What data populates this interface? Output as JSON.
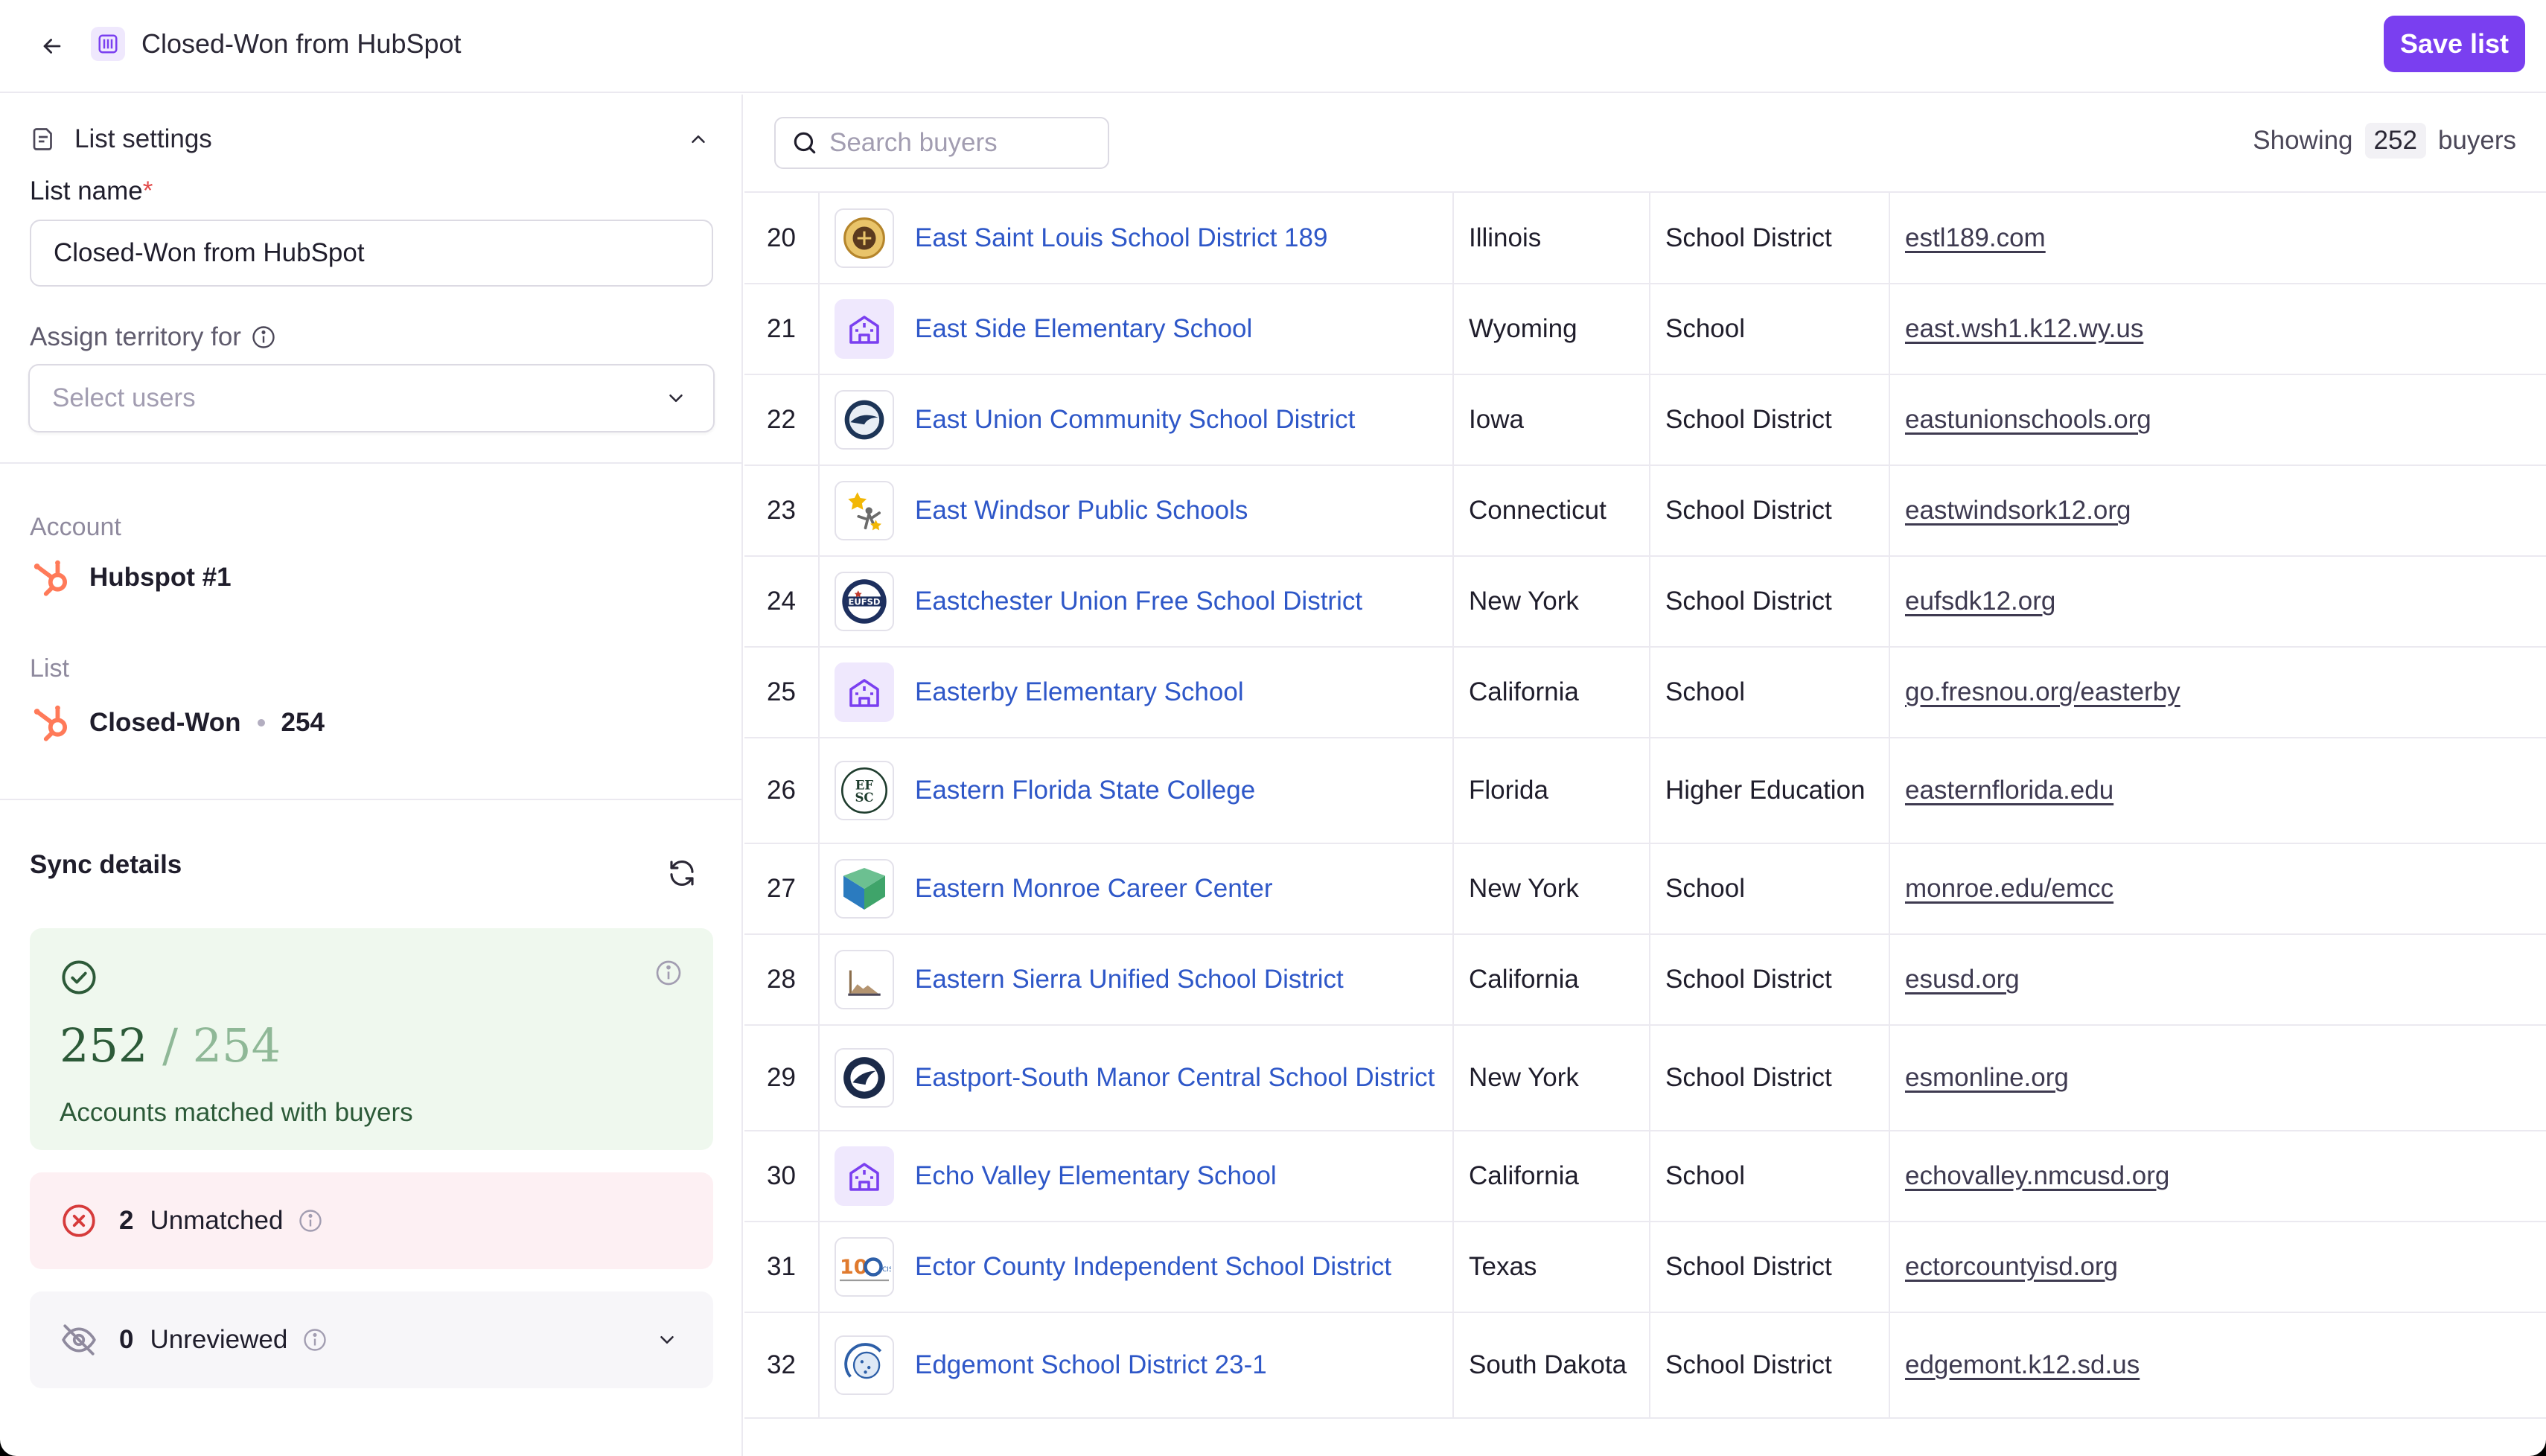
{
  "header": {
    "title": "Closed-Won from HubSpot",
    "save_label": "Save list"
  },
  "sidebar": {
    "section_title": "List settings",
    "list_name_label": "List name",
    "list_name_required": "*",
    "list_name_value": "Closed-Won from HubSpot",
    "assign_label": "Assign territory for",
    "assign_placeholder": "Select users",
    "account_label": "Account",
    "account_name": "Hubspot #1",
    "list_label": "List",
    "list_name": "Closed-Won",
    "list_count": "254",
    "sync_title": "Sync details",
    "matched": {
      "count": "252",
      "separator": "/",
      "total": "254",
      "label": "Accounts matched with buyers"
    },
    "unmatched": {
      "count": "2",
      "label": "Unmatched"
    },
    "unreviewed": {
      "count": "0",
      "label": "Unreviewed"
    }
  },
  "main": {
    "search_placeholder": "Search buyers",
    "showing_prefix": "Showing",
    "showing_count": "252",
    "showing_suffix": "buyers"
  },
  "rows": [
    {
      "idx": "20",
      "name": "East Saint Louis School District 189",
      "state": "Illinois",
      "type": "School District",
      "website": "estl189.com",
      "logo": "seal-gold"
    },
    {
      "idx": "21",
      "name": "East Side Elementary School",
      "state": "Wyoming",
      "type": "School",
      "website": "east.wsh1.k12.wy.us",
      "logo": "school-building-icon"
    },
    {
      "idx": "22",
      "name": "East Union Community School District",
      "state": "Iowa",
      "type": "School District",
      "website": "eastunionschools.org",
      "logo": "eagle-blue"
    },
    {
      "idx": "23",
      "name": "East Windsor Public Schools",
      "state": "Connecticut",
      "type": "School District",
      "website": "eastwindsork12.org",
      "logo": "star-figure"
    },
    {
      "idx": "24",
      "name": "Eastchester Union Free School District",
      "state": "New York",
      "type": "School District",
      "website": "eufsdk12.org",
      "logo": "eufsd-seal"
    },
    {
      "idx": "25",
      "name": "Easterby Elementary School",
      "state": "California",
      "type": "School",
      "website": "go.fresnou.org/easterby",
      "logo": "school-building-icon"
    },
    {
      "idx": "26",
      "name": "Eastern Florida State College",
      "state": "Florida",
      "type": "Higher Education",
      "website": "easternflorida.edu",
      "logo": "efsc-monogram"
    },
    {
      "idx": "27",
      "name": "Eastern Monroe Career Center",
      "state": "New York",
      "type": "School",
      "website": "monroe.edu/emcc",
      "logo": "emcc-chevron"
    },
    {
      "idx": "28",
      "name": "Eastern Sierra Unified School District",
      "state": "California",
      "type": "School District",
      "website": "esusd.org",
      "logo": "mountain-mark"
    },
    {
      "idx": "29",
      "name": "Eastport-South Manor Central School District",
      "state": "New York",
      "type": "School District",
      "website": "esmonline.org",
      "logo": "navy-seal"
    },
    {
      "idx": "30",
      "name": "Echo Valley Elementary School",
      "state": "California",
      "type": "School",
      "website": "echovalley.nmcusd.org",
      "logo": "school-building-icon"
    },
    {
      "idx": "31",
      "name": "Ector County Independent School District",
      "state": "Texas",
      "type": "School District",
      "website": "ectorcountyisd.org",
      "logo": "ecisd-100"
    },
    {
      "idx": "32",
      "name": "Edgemont School District 23-1",
      "state": "South Dakota",
      "type": "School District",
      "website": "edgemont.k12.sd.us",
      "logo": "globe-mark"
    }
  ],
  "colors": {
    "accent": "#7a3ff0",
    "link": "#2e57c8",
    "hubspot": "#ff7a59",
    "matched_bg": "#eff8ee",
    "unmatched_bg": "#fdf0f3",
    "unreviewed_bg": "#f7f6f9"
  }
}
